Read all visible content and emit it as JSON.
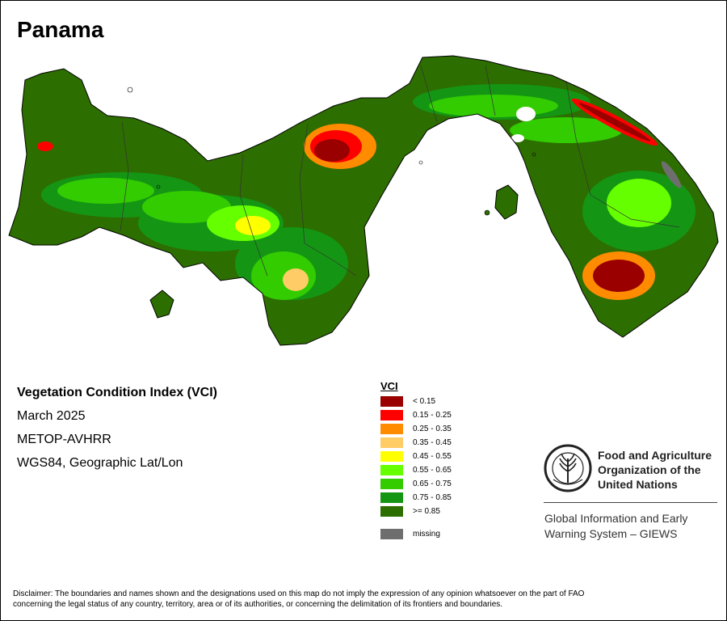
{
  "map": {
    "title": "Panama"
  },
  "info": {
    "index_title": "Vegetation Condition Index (VCI)",
    "period": "March 2025",
    "sensor": "METOP-AVHRR",
    "projection": "WGS84, Geographic Lat/Lon"
  },
  "legend": {
    "title": "VCI",
    "classes": [
      {
        "label": "< 0.15",
        "color": "#9b0000"
      },
      {
        "label": "0.15 - 0.25",
        "color": "#ff0000"
      },
      {
        "label": "0.25 - 0.35",
        "color": "#ff8c00"
      },
      {
        "label": "0.35 - 0.45",
        "color": "#ffcc66"
      },
      {
        "label": "0.45 - 0.55",
        "color": "#ffff00"
      },
      {
        "label": "0.55 - 0.65",
        "color": "#66ff00"
      },
      {
        "label": "0.65 - 0.75",
        "color": "#33cc00"
      },
      {
        "label": "0.75 - 0.85",
        "color": "#149614"
      },
      {
        "label": ">= 0.85",
        "color": "#2d6e00"
      }
    ],
    "missing": {
      "label": "missing",
      "color": "#6e6e6e"
    }
  },
  "organization": {
    "line1": "Food and Agriculture",
    "line2": "Organization of the",
    "line3": "United Nations",
    "system_line1": "Global Information and Early",
    "system_line2": "Warning System – GIEWS"
  },
  "disclaimer": {
    "line1": "Disclaimer: The boundaries and names shown and the designations used on this map do not imply the expression of any opinion whatsoever on the part of FAO",
    "line2": "concerning the legal status of any country, territory, area or of its authorities, or concerning the delimitation of its frontiers and boundaries."
  }
}
